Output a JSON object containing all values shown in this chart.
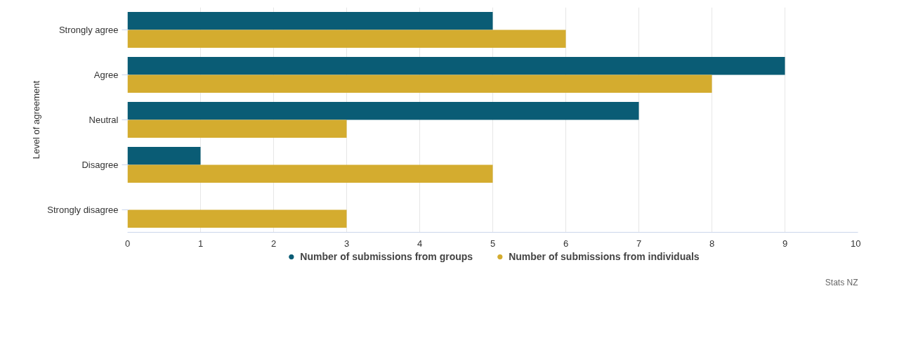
{
  "chart_data": {
    "type": "bar",
    "orientation": "horizontal",
    "ylabel": "Level of agreement",
    "categories": [
      "Strongly agree",
      "Agree",
      "Neutral",
      "Disagree",
      "Strongly disagree"
    ],
    "series": [
      {
        "name": "Number of submissions from groups",
        "color": "#0a5c75",
        "values": [
          5,
          9,
          7,
          1,
          0
        ]
      },
      {
        "name": "Number of submissions from individuals",
        "color": "#d4ac2f",
        "values": [
          6,
          8,
          3,
          5,
          3
        ]
      }
    ],
    "xlim": [
      0,
      10
    ],
    "xticks": [
      0,
      1,
      2,
      3,
      4,
      5,
      6,
      7,
      8,
      9,
      10
    ],
    "grid": "x",
    "legend": "bottom",
    "annotations": [
      "Stats NZ"
    ]
  }
}
